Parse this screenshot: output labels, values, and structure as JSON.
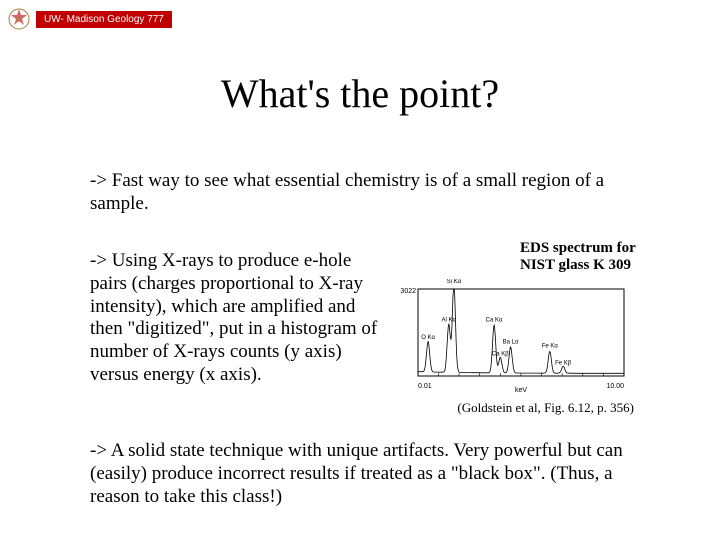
{
  "header": {
    "badge_text": "UW- Madison Geology 777",
    "badge_bg": "#c00000",
    "badge_fg": "#ffffff",
    "badge_fontsize": 10
  },
  "title": {
    "text": "What's the point?",
    "fontsize": 40
  },
  "bullets": {
    "b1": "-> Fast way to see what essential chemistry is of a small region of a sample.",
    "b2": "-> Using X-rays to produce e-hole pairs (charges proportional to X-ray intensity), which are amplified and then \"digitized\", put in a histogram of number of X-rays counts (y axis) versus energy (x axis).",
    "b3": "-> A solid state technique with unique artifacts. Very powerful but can (easily) produce incorrect results if treated as a \"black box\". (Thus, a reason to take this class!)",
    "fontsize": 19
  },
  "figure": {
    "caption": "EDS spectrum for NIST glass K 309",
    "credit": "(Goldstein et al, Fig. 6.12, p. 356)",
    "caption_fontsize": 15,
    "credit_fontsize": 13,
    "spectrum": {
      "type": "line",
      "xlabel": "keV",
      "xlim": [
        0.01,
        10.0
      ],
      "ylim": [
        0,
        3022
      ],
      "ymax_label": "3022",
      "xmin_label": "0.01",
      "xmax_label": "10.00",
      "background_color": "#ffffff",
      "line_color": "#000000",
      "axis_color": "#000000",
      "peaks": [
        {
          "x": 0.5,
          "height": 0.35,
          "label": "O Kα",
          "label_dy": -4
        },
        {
          "x": 1.5,
          "height": 0.55,
          "label": "Al Kα",
          "label_dy": -4
        },
        {
          "x": 1.75,
          "height": 1.0,
          "label": "Si Kα",
          "label_dy": -6
        },
        {
          "x": 3.7,
          "height": 0.55,
          "label": "Ca Kα",
          "label_dy": -4
        },
        {
          "x": 4.0,
          "height": 0.18,
          "label": "Ca Kβ",
          "label_dy": -2
        },
        {
          "x": 4.5,
          "height": 0.3,
          "label": "Ba Lα",
          "label_dy": -4
        },
        {
          "x": 6.4,
          "height": 0.25,
          "label": "Fe Kα",
          "label_dy": -4
        },
        {
          "x": 7.05,
          "height": 0.08,
          "label": "Fe Kβ",
          "label_dy": -2
        }
      ],
      "baseline": 0.03,
      "peak_width": 0.18
    }
  },
  "colors": {
    "page_bg": "#ffffff",
    "text": "#000000"
  }
}
